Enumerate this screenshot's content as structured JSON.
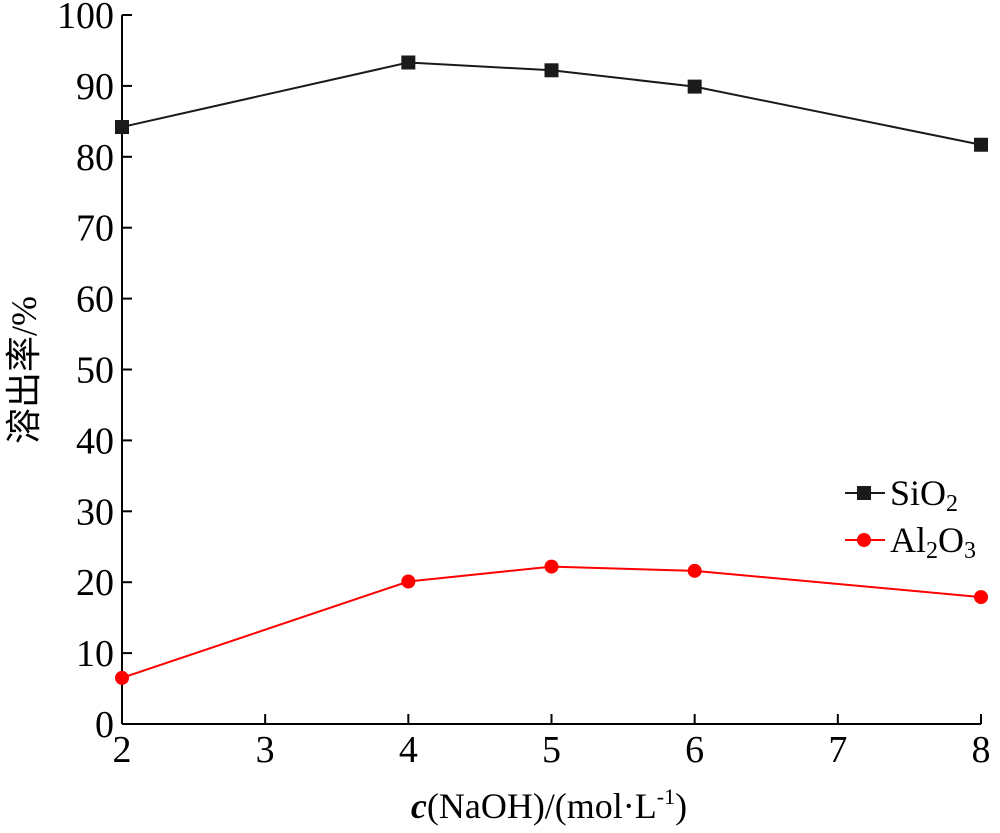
{
  "chart_data": {
    "type": "line",
    "title": "",
    "xlabel": "c(NaOH)/(mol·L-1)",
    "xlabel_parts": {
      "var": "c",
      "rest": "(NaOH)/(mol·L",
      "sup": "-1",
      "close": ")"
    },
    "ylabel": "溶出率/%",
    "xlim": [
      2,
      8
    ],
    "ylim": [
      0,
      100
    ],
    "x_ticks": [
      2,
      3,
      4,
      5,
      6,
      7,
      8
    ],
    "y_ticks": [
      0,
      10,
      20,
      30,
      40,
      50,
      60,
      70,
      80,
      90,
      100
    ],
    "grid": false,
    "legend_position": "right",
    "series": [
      {
        "name": "SiO2",
        "label_parts": {
          "base": "SiO",
          "sub": "2"
        },
        "color": "#1a1a1a",
        "marker": "square",
        "points": [
          {
            "x": 2,
            "y": 84.2
          },
          {
            "x": 4,
            "y": 93.3
          },
          {
            "x": 5,
            "y": 92.2
          },
          {
            "x": 6,
            "y": 89.9
          },
          {
            "x": 8,
            "y": 81.7
          }
        ]
      },
      {
        "name": "Al2O3",
        "label_parts": {
          "a": "Al",
          "sub1": "2",
          "b": "O",
          "sub2": "3"
        },
        "color": "#ff0000",
        "marker": "circle",
        "points": [
          {
            "x": 2,
            "y": 6.5
          },
          {
            "x": 4,
            "y": 20.1
          },
          {
            "x": 5,
            "y": 22.2
          },
          {
            "x": 6,
            "y": 21.6
          },
          {
            "x": 8,
            "y": 17.9
          }
        ]
      }
    ]
  }
}
